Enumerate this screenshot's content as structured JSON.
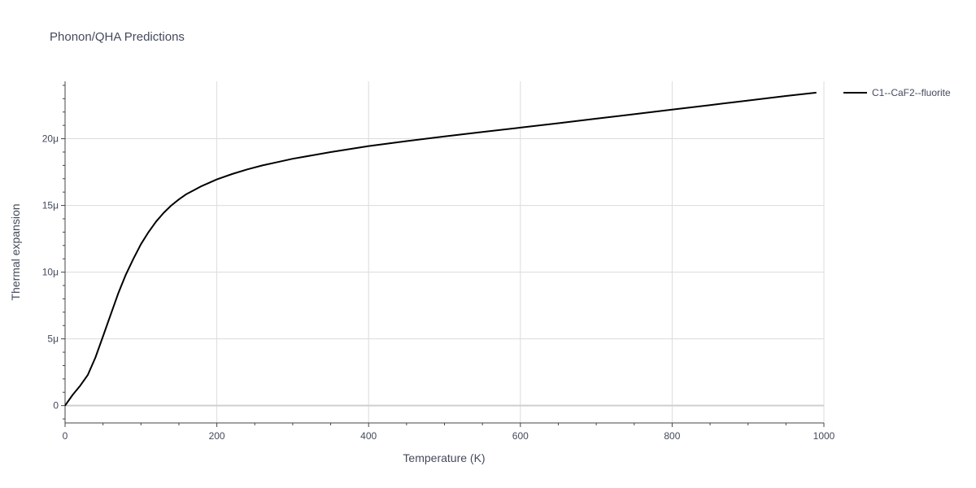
{
  "chart_data": {
    "type": "line",
    "title": "Phonon/QHA Predictions",
    "xlabel": "Temperature (K)",
    "ylabel": "Thermal expansion",
    "xlim": [
      0,
      1000
    ],
    "ylim": [
      -1.3,
      24.3
    ],
    "x_ticks": [
      0,
      200,
      400,
      600,
      800,
      1000
    ],
    "x_tick_labels": [
      "0",
      "200",
      "400",
      "600",
      "800",
      "1000"
    ],
    "y_ticks": [
      0,
      5,
      10,
      15,
      20
    ],
    "y_tick_labels": [
      "0",
      "5μ",
      "10μ",
      "15μ",
      "20μ"
    ],
    "y_unit_note": "values in units of 1e-6 per K (μ)",
    "grid": true,
    "legend_position": "top-right-outside",
    "series": [
      {
        "name": "C1--CaF2--fluorite",
        "color": "#000000",
        "x": [
          0,
          10,
          20,
          30,
          40,
          50,
          60,
          70,
          80,
          90,
          100,
          110,
          120,
          130,
          140,
          150,
          160,
          170,
          180,
          190,
          200,
          220,
          240,
          260,
          280,
          300,
          350,
          400,
          450,
          500,
          550,
          600,
          650,
          700,
          750,
          800,
          850,
          900,
          950,
          990
        ],
        "y": [
          0,
          0.8,
          1.5,
          2.3,
          3.6,
          5.2,
          6.8,
          8.4,
          9.8,
          11.0,
          12.1,
          13.0,
          13.8,
          14.45,
          15.0,
          15.45,
          15.85,
          16.15,
          16.45,
          16.7,
          16.95,
          17.35,
          17.7,
          18.0,
          18.25,
          18.5,
          19.0,
          19.45,
          19.82,
          20.17,
          20.5,
          20.83,
          21.16,
          21.5,
          21.84,
          22.18,
          22.52,
          22.86,
          23.2,
          23.45
        ]
      }
    ]
  }
}
